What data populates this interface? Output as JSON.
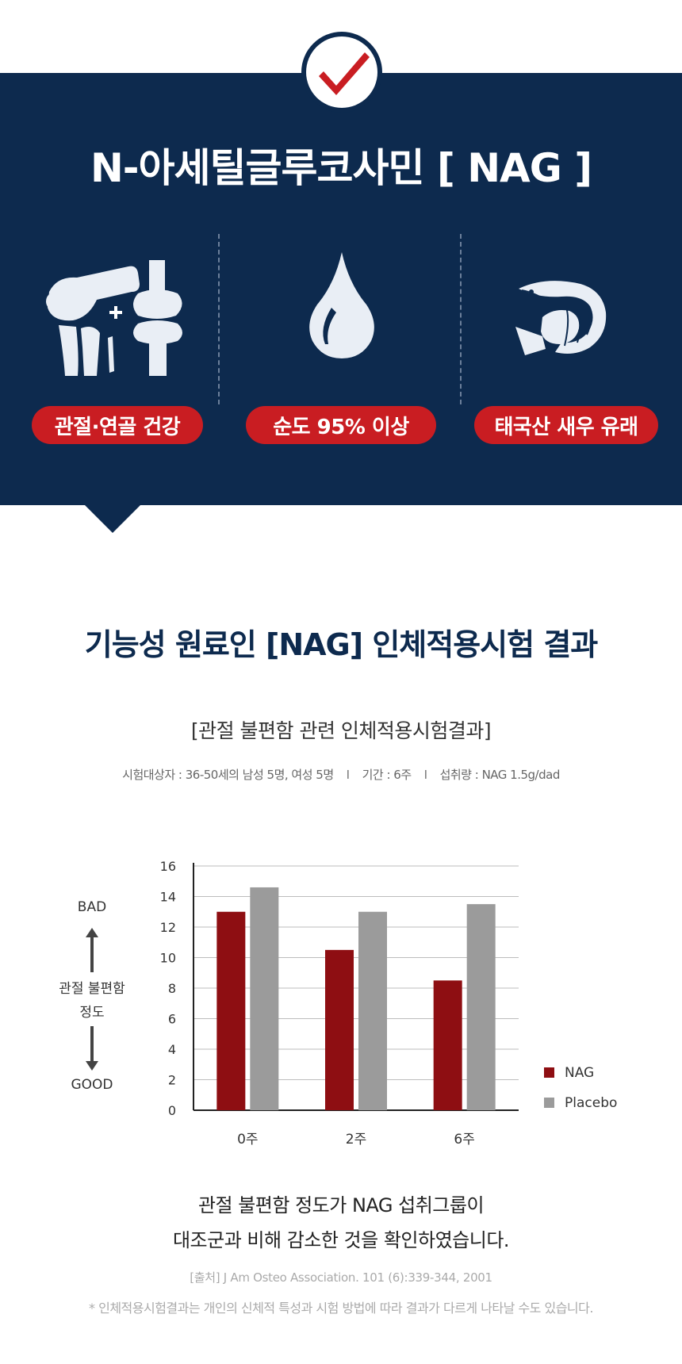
{
  "header": {
    "title": "N-아세틸글루코사민 [ NAG ]",
    "features": [
      {
        "label": "관절·연골 건강",
        "icon": "knee-joint-icon"
      },
      {
        "label": "순도 95% 이상",
        "icon": "water-drop-icon"
      },
      {
        "label": "태국산 새우 유래",
        "icon": "shrimp-icon"
      }
    ]
  },
  "section": {
    "title": "기능성 원료인 [NAG] 인체적용시험 결과"
  },
  "trial": {
    "subtitle": "[관절 불편함 관련 인체적용시험결과]",
    "subjects": "시험대상자 : 36-50세의 남성 5명, 여성 5명",
    "separator": "I",
    "period": "기간 : 6주",
    "intake": "섭취량 : NAG 1.5g/dad"
  },
  "scale": {
    "bad": "BAD",
    "label_line1": "관절 불편함",
    "label_line2": "정도",
    "good": "GOOD"
  },
  "chart_data": {
    "type": "bar",
    "categories": [
      "0주",
      "2주",
      "6주"
    ],
    "series": [
      {
        "name": "NAG",
        "values": [
          13.0,
          10.5,
          8.5
        ],
        "color": "#8e0e12"
      },
      {
        "name": "Placebo",
        "values": [
          14.6,
          13.0,
          13.5
        ],
        "color": "#9b9b9b"
      }
    ],
    "y_ticks": [
      "0",
      "2",
      "4",
      "6",
      "8",
      "10",
      "12",
      "14",
      "16"
    ],
    "ylim": [
      0,
      16
    ],
    "grid": true,
    "legend_position": "bottom-right"
  },
  "conclusion": {
    "line1": "관절 불편함 정도가 NAG 섭취그룹이",
    "line2": "대조군과 비해 감소한 것을 확인하였습니다."
  },
  "footer": {
    "source": "[출처] J Am Osteo Association. 101 (6):339-344, 2001",
    "disclaimer": "* 인체적용시험결과는 개인의 신체적 특성과 시험 방법에 따라 결과가 다르게 나타날 수도 있습니다."
  },
  "colors": {
    "navy": "#0d2a4e",
    "red": "#c91d22",
    "nag_bar": "#8e0e12",
    "placebo_bar": "#9b9b9b"
  }
}
